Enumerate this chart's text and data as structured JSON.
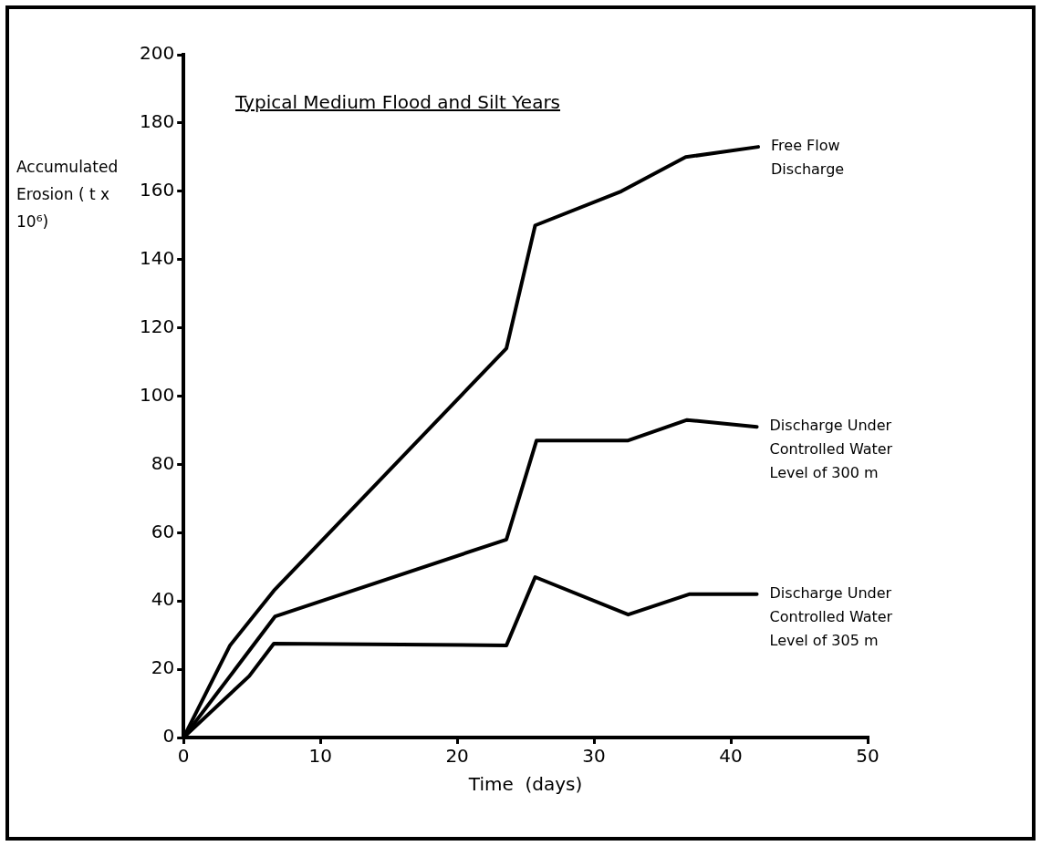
{
  "chart_data": {
    "type": "line",
    "title": "Typical Medium Flood and Silt Years",
    "xlabel": "Time  (days)",
    "ylabel": "Accumulated Erosion ( t x 10⁶)",
    "xlim": [
      0,
      50
    ],
    "xticks": [
      0,
      10,
      20,
      30,
      40,
      50
    ],
    "ylim": [
      0,
      200
    ],
    "yticks": [
      0,
      20,
      40,
      60,
      80,
      100,
      120,
      140,
      160,
      180,
      200
    ],
    "grid": false,
    "legend": false,
    "marker": "none",
    "line_style": "solid",
    "series": [
      {
        "name": "Free Flow Discharge",
        "color": "#000000",
        "x": [
          0,
          3.4,
          6.6,
          23.6,
          25.7,
          32.0,
          36.7,
          42.0
        ],
        "values": [
          0,
          27,
          43,
          114,
          150,
          160,
          170,
          173
        ]
      },
      {
        "name": "Discharge Under Controlled Water Level of 300 m",
        "color": "#000000",
        "x": [
          0,
          6.7,
          23.6,
          25.8,
          32.5,
          36.8,
          41.9
        ],
        "values": [
          0,
          35.5,
          58,
          87,
          87,
          93,
          91
        ]
      },
      {
        "name": "Discharge Under Controlled Water Level of 305 m",
        "color": "#000000",
        "x": [
          0,
          4.8,
          6.6,
          23.6,
          25.7,
          32.5,
          37.0,
          41.9
        ],
        "values": [
          0,
          18,
          27.5,
          27,
          47,
          36,
          42,
          42
        ]
      }
    ]
  }
}
